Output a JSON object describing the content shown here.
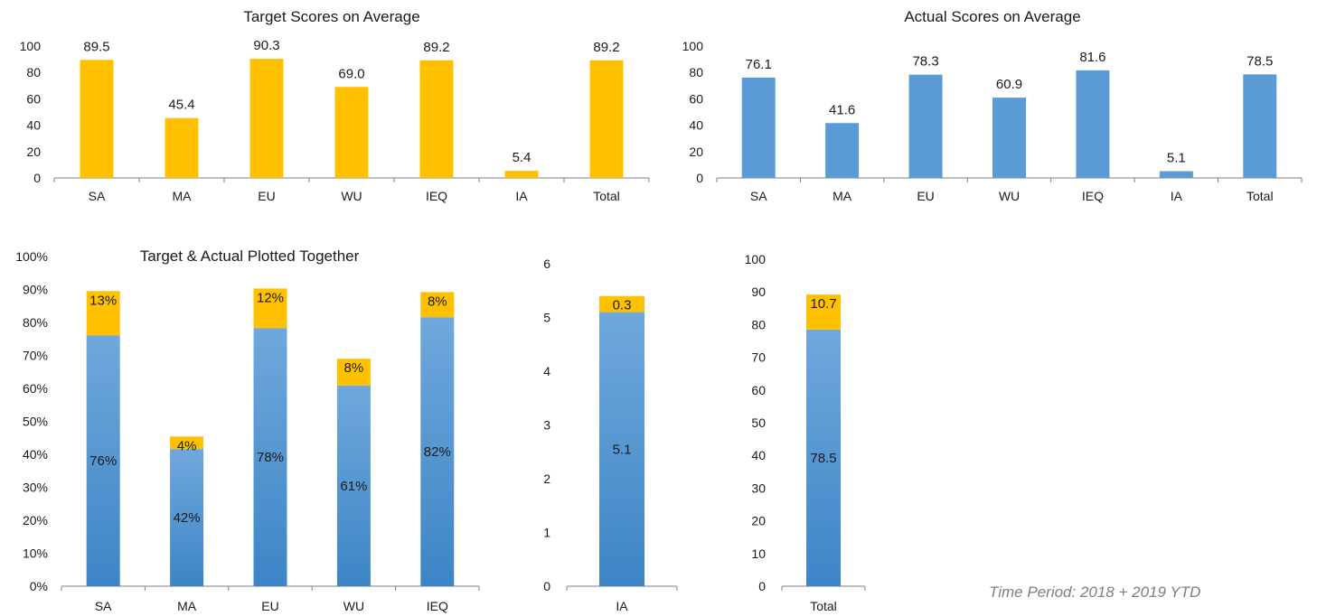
{
  "colors": {
    "target": "#FFC000",
    "actual": "#5B9BD5",
    "actual_dark": "#3D85C6",
    "actual_light": "#6FA8DC",
    "axis": "#7f7f7f",
    "text": "#1a1a1a",
    "note": "#7f7f7f"
  },
  "note": "Time Period: 2018 + 2019 YTD",
  "chart_data": [
    {
      "id": "target",
      "type": "bar",
      "title": "Target Scores on Average",
      "categories": [
        "SA",
        "MA",
        "EU",
        "WU",
        "IEQ",
        "IA",
        "Total"
      ],
      "values": [
        89.5,
        45.4,
        90.3,
        69.0,
        89.2,
        5.4,
        89.2
      ],
      "data_labels": [
        "89.5",
        "45.4",
        "90.3",
        "69.0",
        "89.2",
        "5.4",
        "89.2"
      ],
      "ylim": [
        0,
        100
      ],
      "yticks": [
        "0",
        "20",
        "40",
        "60",
        "80",
        "100"
      ],
      "color": "#FFC000"
    },
    {
      "id": "actual",
      "type": "bar",
      "title": "Actual Scores on Average",
      "categories": [
        "SA",
        "MA",
        "EU",
        "WU",
        "IEQ",
        "IA",
        "Total"
      ],
      "values": [
        76.1,
        41.6,
        78.3,
        60.9,
        81.6,
        5.1,
        78.5
      ],
      "data_labels": [
        "76.1",
        "41.6",
        "78.3",
        "60.9",
        "81.6",
        "5.1",
        "78.5"
      ],
      "ylim": [
        0,
        100
      ],
      "yticks": [
        "0",
        "20",
        "40",
        "60",
        "80",
        "100"
      ],
      "color": "#5B9BD5"
    },
    {
      "id": "together",
      "type": "bar",
      "stacked": true,
      "title": "Target & Actual Plotted Together",
      "categories": [
        "SA",
        "MA",
        "EU",
        "WU",
        "IEQ"
      ],
      "series": [
        {
          "values": [
            76.1,
            41.6,
            78.3,
            60.9,
            81.6
          ],
          "labels": [
            "76%",
            "42%",
            "78%",
            "61%",
            "82%"
          ],
          "color": "#5B9BD5"
        },
        {
          "values": [
            13.4,
            3.8,
            12.0,
            8.1,
            7.6
          ],
          "labels": [
            "13%",
            "4%",
            "12%",
            "8%",
            "8%"
          ],
          "color": "#FFC000"
        }
      ],
      "ylim": [
        0,
        100
      ],
      "yticks": [
        "0%",
        "10%",
        "20%",
        "30%",
        "40%",
        "50%",
        "60%",
        "70%",
        "80%",
        "90%",
        "100%"
      ]
    },
    {
      "id": "ia",
      "type": "bar",
      "stacked": true,
      "title": "",
      "categories": [
        "IA"
      ],
      "series": [
        {
          "values": [
            5.1
          ],
          "labels": [
            "5.1"
          ],
          "color": "#5B9BD5"
        },
        {
          "values": [
            0.3
          ],
          "labels": [
            "0.3"
          ],
          "color": "#FFC000"
        }
      ],
      "ylim": [
        0,
        6
      ],
      "yticks": [
        "0",
        "1",
        "2",
        "3",
        "4",
        "5",
        "6"
      ]
    },
    {
      "id": "total",
      "type": "bar",
      "stacked": true,
      "title": "",
      "categories": [
        "Total"
      ],
      "series": [
        {
          "values": [
            78.5
          ],
          "labels": [
            "78.5"
          ],
          "color": "#5B9BD5"
        },
        {
          "values": [
            10.7
          ],
          "labels": [
            "10.7"
          ],
          "color": "#FFC000"
        }
      ],
      "ylim": [
        0,
        100
      ],
      "yticks": [
        "0",
        "10",
        "20",
        "30",
        "40",
        "50",
        "60",
        "70",
        "80",
        "90",
        "100"
      ]
    }
  ]
}
